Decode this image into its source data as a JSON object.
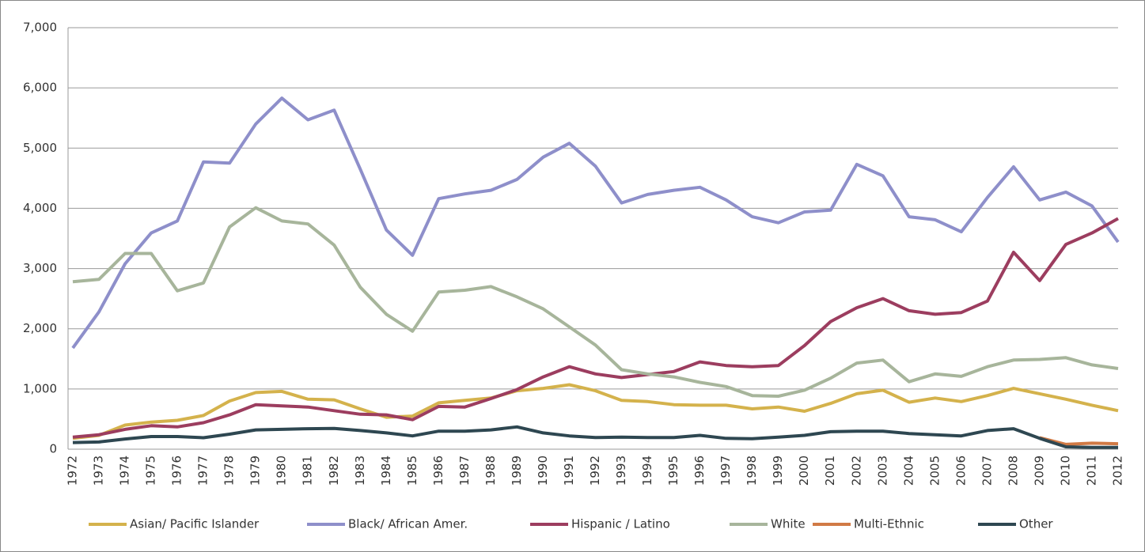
{
  "chart_data": {
    "type": "line",
    "categories": [
      "1972",
      "1973",
      "1974",
      "1975",
      "1976",
      "1977",
      "1978",
      "1979",
      "1980",
      "1981",
      "1982",
      "1983",
      "1984",
      "1985",
      "1986",
      "1987",
      "1988",
      "1989",
      "1990",
      "1991",
      "1992",
      "1993",
      "1994",
      "1995",
      "1996",
      "1997",
      "1998",
      "1999",
      "2000",
      "2001",
      "2002",
      "2003",
      "2004",
      "2005",
      "2006",
      "2007",
      "2008",
      "2009",
      "2010",
      "2011",
      "2012"
    ],
    "ylim": [
      0,
      7000
    ],
    "yticks": [
      0,
      {
        "value": 1000,
        "label": "1,000"
      },
      {
        "value": 2000,
        "label": "2,000"
      },
      {
        "value": 3000,
        "label": "3,000"
      },
      {
        "value": 4000,
        "label": "4,000"
      },
      {
        "value": 5000,
        "label": "5,000"
      },
      {
        "value": 6000,
        "label": "6,000"
      },
      {
        "value": 7000,
        "label": "7,000"
      }
    ],
    "grid": true,
    "legend": "bottom",
    "series": [
      {
        "name": "Asian/ Pacific Islander",
        "color": "#d4b24c",
        "values": [
          180,
          230,
          400,
          450,
          480,
          560,
          800,
          940,
          960,
          830,
          820,
          670,
          530,
          550,
          770,
          810,
          850,
          970,
          1010,
          1070,
          970,
          810,
          790,
          740,
          730,
          730,
          670,
          700,
          630,
          760,
          920,
          980,
          780,
          850,
          790,
          890,
          1010,
          920,
          830,
          730,
          640
        ]
      },
      {
        "name": "Black/ African Amer.",
        "color": "#8e8fca",
        "values": [
          1680,
          2280,
          3080,
          3590,
          3790,
          4770,
          4750,
          5400,
          5830,
          5470,
          5630,
          4650,
          3640,
          3220,
          4160,
          4240,
          4300,
          4480,
          4850,
          5080,
          4700,
          4090,
          4230,
          4300,
          4350,
          4140,
          3860,
          3760,
          3940,
          3970,
          4730,
          4540,
          3860,
          3810,
          3610,
          4180,
          4690,
          4140,
          4270,
          4040,
          3440
        ]
      },
      {
        "name": "Hispanic / Latino",
        "color": "#9c3d5f",
        "values": [
          200,
          240,
          330,
          390,
          370,
          440,
          570,
          740,
          720,
          700,
          640,
          580,
          570,
          490,
          710,
          700,
          840,
          990,
          1200,
          1370,
          1250,
          1190,
          1240,
          1290,
          1450,
          1390,
          1370,
          1390,
          1720,
          2120,
          2350,
          2500,
          2300,
          2240,
          2270,
          2460,
          3270,
          2800,
          3400,
          3590,
          3830
        ]
      },
      {
        "name": "White",
        "color": "#a7b59b",
        "values": [
          2780,
          2820,
          3250,
          3250,
          2630,
          2760,
          3690,
          4010,
          3790,
          3740,
          3390,
          2690,
          2240,
          1960,
          2610,
          2640,
          2700,
          2530,
          2330,
          2030,
          1730,
          1320,
          1250,
          1200,
          1110,
          1040,
          890,
          880,
          980,
          1180,
          1430,
          1480,
          1120,
          1250,
          1210,
          1370,
          1480,
          1490,
          1520,
          1400,
          1340
        ]
      },
      {
        "name": "Multi-Ethnic",
        "color": "#d17a45",
        "values": [
          null,
          null,
          null,
          null,
          null,
          null,
          null,
          null,
          null,
          null,
          null,
          null,
          null,
          null,
          null,
          null,
          null,
          null,
          null,
          null,
          null,
          null,
          null,
          null,
          null,
          null,
          null,
          null,
          null,
          null,
          null,
          null,
          null,
          null,
          null,
          null,
          null,
          190,
          80,
          100,
          90
        ]
      },
      {
        "name": "Other",
        "color": "#2e4751",
        "values": [
          110,
          120,
          170,
          210,
          210,
          190,
          250,
          320,
          330,
          340,
          345,
          310,
          270,
          220,
          300,
          300,
          320,
          370,
          270,
          220,
          195,
          200,
          195,
          195,
          230,
          180,
          175,
          200,
          230,
          290,
          300,
          300,
          260,
          240,
          220,
          310,
          340,
          180,
          40,
          30,
          30
        ]
      }
    ]
  }
}
